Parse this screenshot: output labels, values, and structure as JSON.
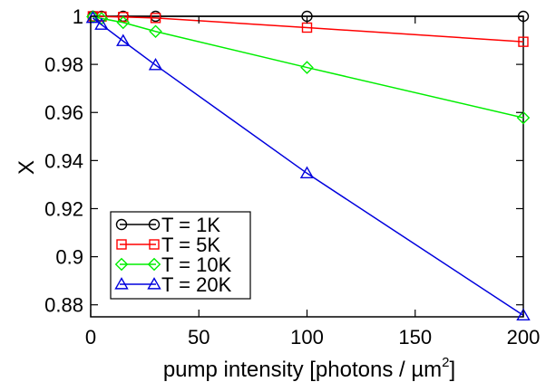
{
  "chart_data": {
    "type": "line",
    "xlabel": "pump intensity [photons / µm",
    "xlabel_sup": "2",
    "xlabel_end": "]",
    "ylabel": "X",
    "xlim": [
      0,
      200
    ],
    "ylim": [
      0.875,
      1.0
    ],
    "xticks": [
      0,
      50,
      100,
      150,
      200
    ],
    "yticks": [
      0.88,
      0.9,
      0.92,
      0.94,
      0.96,
      0.98,
      1.0
    ],
    "xtick_labels": [
      "0",
      "50",
      "100",
      "150",
      "200"
    ],
    "ytick_labels": [
      "0.88",
      "0.9",
      "0.92",
      "0.94",
      "0.96",
      "0.98",
      "1"
    ],
    "legend_position": "bottom-left",
    "grid": false,
    "series": [
      {
        "name": "T = 1K",
        "color": "#000000",
        "marker": "circle",
        "x": [
          1,
          5,
          15,
          30,
          100,
          200
        ],
        "y": [
          1.0,
          1.0,
          1.0,
          1.0,
          1.0,
          1.0
        ]
      },
      {
        "name": "T = 5K",
        "color": "#ff0000",
        "marker": "square",
        "x": [
          1,
          5,
          15,
          30,
          100,
          200
        ],
        "y": [
          1.0,
          0.9999,
          0.9997,
          0.9993,
          0.9953,
          0.9894
        ]
      },
      {
        "name": "T = 10K",
        "color": "#00ee00",
        "marker": "diamond",
        "x": [
          1,
          5,
          15,
          30,
          100,
          200
        ],
        "y": [
          0.9998,
          0.9991,
          0.9974,
          0.9937,
          0.9787,
          0.9578
        ]
      },
      {
        "name": "T = 20K",
        "color": "#0000dd",
        "marker": "triangle",
        "x": [
          1,
          5,
          15,
          30,
          100,
          200
        ],
        "y": [
          0.9993,
          0.9965,
          0.9897,
          0.9797,
          0.9347,
          0.8756
        ]
      }
    ]
  }
}
